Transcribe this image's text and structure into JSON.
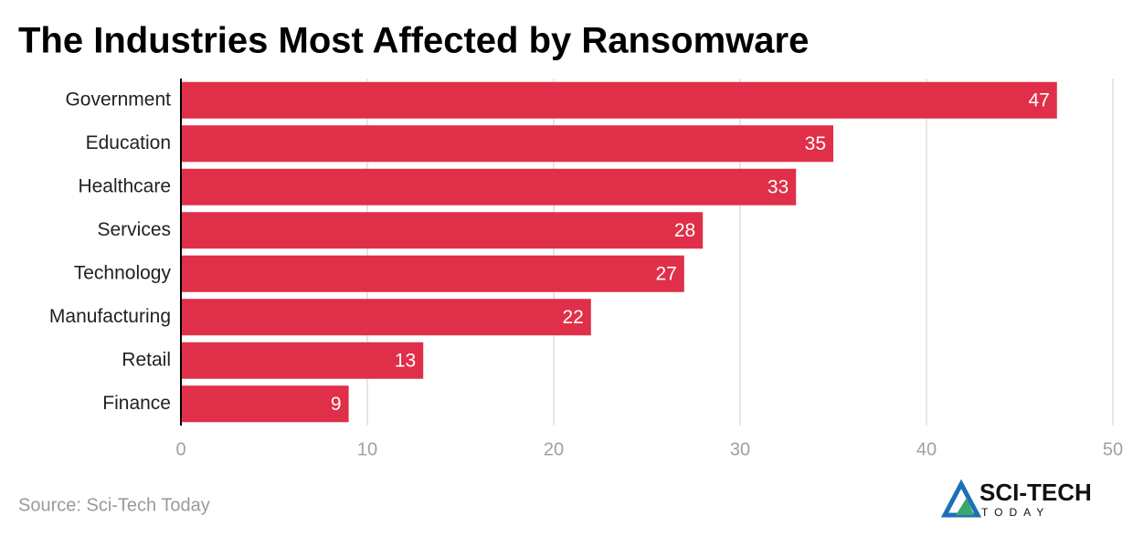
{
  "chart_data": {
    "type": "bar",
    "orientation": "horizontal",
    "title": "The Industries Most Affected by Ransomware",
    "categories": [
      "Government",
      "Education",
      "Healthcare",
      "Services",
      "Technology",
      "Manufacturing",
      "Retail",
      "Finance"
    ],
    "values": [
      47,
      35,
      33,
      28,
      27,
      22,
      13,
      9
    ],
    "color": "#e02f48",
    "xlim": [
      0,
      50
    ],
    "xticks": [
      0,
      10,
      20,
      30,
      40,
      50
    ],
    "grid": true,
    "source": "Source: Sci-Tech Today"
  },
  "logo": {
    "text": "SCI-TECH",
    "subtext": "TODAY"
  }
}
